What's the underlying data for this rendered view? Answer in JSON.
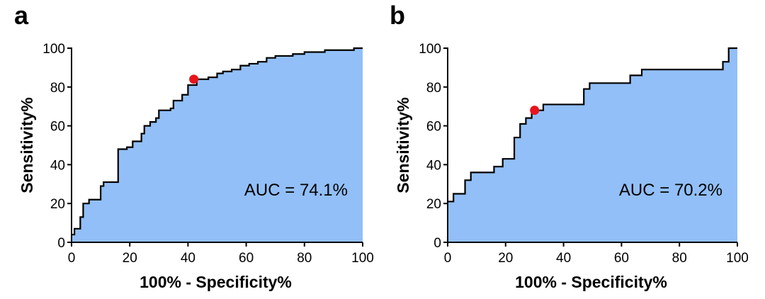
{
  "colors": {
    "fill": "#92BFF7",
    "line": "#000000",
    "marker": "#E8141C"
  },
  "chart_data": [
    {
      "type": "area",
      "panel": "a",
      "xlabel": "100% - Specificity%",
      "ylabel": "Sensitivity%",
      "xlim": [
        0,
        100
      ],
      "ylim": [
        0,
        100
      ],
      "xticks": [
        0,
        20,
        40,
        60,
        80,
        100
      ],
      "yticks": [
        0,
        20,
        40,
        60,
        80,
        100
      ],
      "annotation": "AUC = 74.1%",
      "cutoff_point": {
        "x": 42,
        "y": 84
      },
      "roc_steps": [
        [
          0,
          4
        ],
        [
          1,
          4
        ],
        [
          1,
          7
        ],
        [
          3,
          7
        ],
        [
          3,
          13
        ],
        [
          4,
          13
        ],
        [
          4,
          20
        ],
        [
          6,
          20
        ],
        [
          6,
          22
        ],
        [
          10,
          22
        ],
        [
          10,
          29
        ],
        [
          11,
          29
        ],
        [
          11,
          31
        ],
        [
          16,
          31
        ],
        [
          16,
          48
        ],
        [
          19,
          48
        ],
        [
          19,
          49
        ],
        [
          21,
          49
        ],
        [
          21,
          52
        ],
        [
          24,
          52
        ],
        [
          24,
          56
        ],
        [
          25,
          56
        ],
        [
          25,
          60
        ],
        [
          27,
          60
        ],
        [
          27,
          62
        ],
        [
          29,
          62
        ],
        [
          29,
          64
        ],
        [
          30,
          64
        ],
        [
          30,
          68
        ],
        [
          34,
          68
        ],
        [
          34,
          69
        ],
        [
          35,
          69
        ],
        [
          35,
          73
        ],
        [
          38,
          73
        ],
        [
          38,
          76
        ],
        [
          40,
          76
        ],
        [
          40,
          81
        ],
        [
          43,
          81
        ],
        [
          43,
          84
        ],
        [
          47,
          84
        ],
        [
          47,
          85
        ],
        [
          50,
          85
        ],
        [
          50,
          87
        ],
        [
          52,
          87
        ],
        [
          52,
          88
        ],
        [
          55,
          88
        ],
        [
          55,
          89
        ],
        [
          58,
          89
        ],
        [
          58,
          91
        ],
        [
          61,
          91
        ],
        [
          61,
          92
        ],
        [
          64,
          92
        ],
        [
          64,
          93
        ],
        [
          67,
          93
        ],
        [
          67,
          95
        ],
        [
          70,
          95
        ],
        [
          70,
          96
        ],
        [
          76,
          96
        ],
        [
          76,
          97
        ],
        [
          80,
          97
        ],
        [
          80,
          98
        ],
        [
          87,
          98
        ],
        [
          87,
          99
        ],
        [
          97,
          99
        ],
        [
          97,
          100
        ],
        [
          100,
          100
        ]
      ]
    },
    {
      "type": "area",
      "panel": "b",
      "xlabel": "100% - Specificity%",
      "ylabel": "Sensitivity%",
      "xlim": [
        0,
        100
      ],
      "ylim": [
        0,
        100
      ],
      "xticks": [
        0,
        20,
        40,
        60,
        80,
        100
      ],
      "yticks": [
        0,
        20,
        40,
        60,
        80,
        100
      ],
      "annotation": "AUC = 70.2%",
      "cutoff_point": {
        "x": 30,
        "y": 68
      },
      "roc_steps": [
        [
          0,
          21
        ],
        [
          2,
          21
        ],
        [
          2,
          25
        ],
        [
          6,
          25
        ],
        [
          6,
          32
        ],
        [
          8,
          32
        ],
        [
          8,
          36
        ],
        [
          16,
          36
        ],
        [
          16,
          39
        ],
        [
          19,
          39
        ],
        [
          19,
          43
        ],
        [
          23,
          43
        ],
        [
          23,
          54
        ],
        [
          25,
          54
        ],
        [
          25,
          61
        ],
        [
          27,
          61
        ],
        [
          27,
          64
        ],
        [
          29,
          64
        ],
        [
          29,
          68
        ],
        [
          33,
          68
        ],
        [
          33,
          71
        ],
        [
          47,
          71
        ],
        [
          47,
          79
        ],
        [
          49,
          79
        ],
        [
          49,
          82
        ],
        [
          63,
          82
        ],
        [
          63,
          86
        ],
        [
          67,
          86
        ],
        [
          67,
          89
        ],
        [
          95,
          89
        ],
        [
          95,
          93
        ],
        [
          97,
          93
        ],
        [
          97,
          100
        ],
        [
          100,
          100
        ]
      ]
    }
  ]
}
